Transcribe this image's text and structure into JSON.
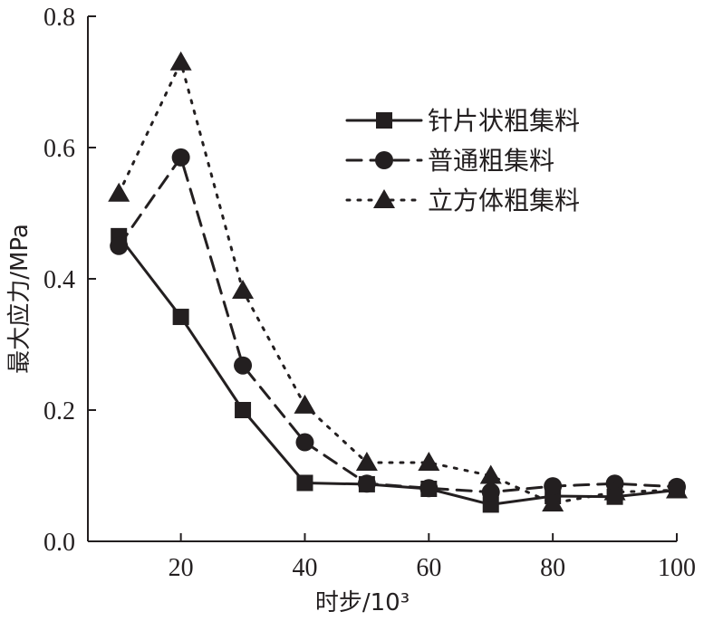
{
  "chart_data": {
    "type": "line",
    "xlabel": "时步/10³",
    "ylabel": "最大应力/MPa",
    "xlim": [
      5,
      100
    ],
    "ylim": [
      0,
      0.8
    ],
    "xticks": [
      20,
      40,
      60,
      80,
      100
    ],
    "xtick_labels": [
      "20",
      "40",
      "60",
      "80",
      "100"
    ],
    "yticks": [
      0,
      0.2,
      0.4,
      0.6,
      0.8
    ],
    "ytick_labels": [
      "0.0",
      "0.2",
      "0.4",
      "0.6",
      "0.8"
    ],
    "grid": false,
    "legend_position": "top-right",
    "x": [
      10,
      20,
      30,
      40,
      50,
      60,
      70,
      80,
      90,
      100
    ],
    "series": [
      {
        "name": "针片状粗集料",
        "line_style": "solid",
        "marker": "square",
        "color": "#231f20",
        "values": [
          0.465,
          0.342,
          0.2,
          0.089,
          0.087,
          0.08,
          0.056,
          0.069,
          0.068,
          0.078
        ]
      },
      {
        "name": "普通粗集料",
        "line_style": "dashed",
        "marker": "circle",
        "color": "#231f20",
        "values": [
          0.45,
          0.585,
          0.268,
          0.151,
          0.088,
          0.081,
          0.075,
          0.084,
          0.088,
          0.083
        ]
      },
      {
        "name": "立方体粗集料",
        "line_style": "dotted",
        "marker": "triangle",
        "color": "#231f20",
        "values": [
          0.53,
          0.73,
          0.382,
          0.207,
          0.12,
          0.12,
          0.1,
          0.058,
          0.075,
          0.078
        ]
      }
    ]
  }
}
